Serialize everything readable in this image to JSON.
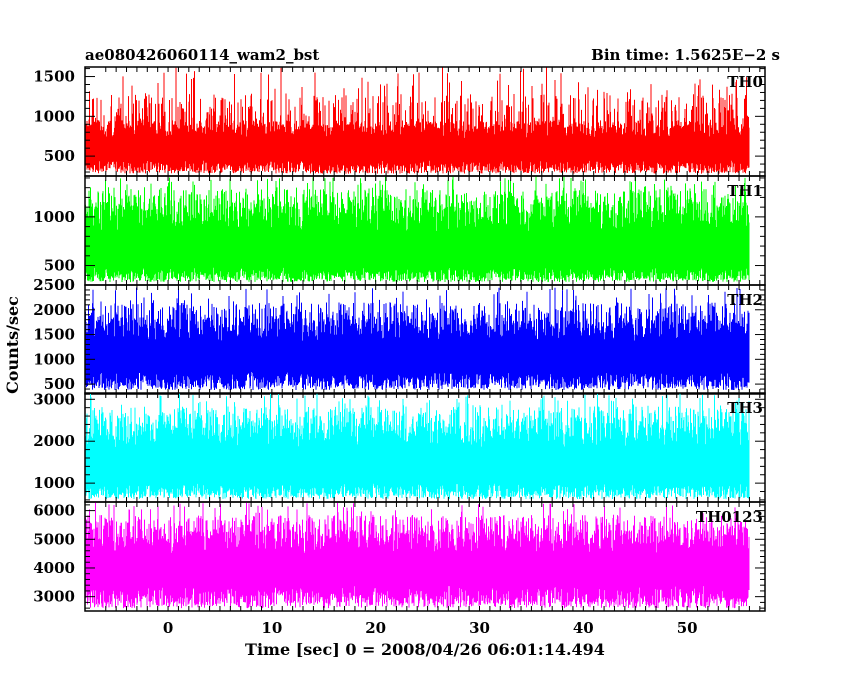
{
  "chart_data": {
    "type": "line",
    "title_left": "ae080426060114_wam2_bst",
    "title_right": "Bin time: 1.5625E−2 s",
    "xlabel": "Time [sec] 0 = 2008/04/26 06:01:14.494",
    "ylabel": "Counts/sec",
    "xlim": [
      -8,
      57.5
    ],
    "x_data_range": [
      -8,
      56
    ],
    "x_ticks": [
      0,
      10,
      20,
      30,
      40,
      50
    ],
    "x_tick_labels": [
      "0",
      "10",
      "20",
      "30",
      "40",
      "50"
    ],
    "panels": [
      {
        "name": "TH0",
        "color": "#ff0000",
        "ylim": [
          250,
          1620
        ],
        "y_ticks": [
          500,
          1000,
          1500
        ],
        "y_tick_labels": [
          "500",
          "1000",
          "1500"
        ],
        "series": {
          "min": 280,
          "typical_low": 450,
          "typical_high": 950,
          "max": 1620
        }
      },
      {
        "name": "TH1",
        "color": "#00ff00",
        "ylim": [
          300,
          1420
        ],
        "y_ticks": [
          500,
          1000
        ],
        "y_tick_labels": [
          "500",
          "1000"
        ],
        "series": {
          "min": 330,
          "typical_low": 480,
          "typical_high": 1150,
          "max": 1420
        }
      },
      {
        "name": "TH2",
        "color": "#0000ff",
        "ylim": [
          300,
          2500
        ],
        "y_ticks": [
          500,
          1000,
          1500,
          2000,
          2500
        ],
        "y_tick_labels": [
          "500",
          "1000",
          "1500",
          "2000",
          "2500"
        ],
        "series": {
          "min": 380,
          "typical_low": 750,
          "typical_high": 1850,
          "max": 2450
        }
      },
      {
        "name": "TH3",
        "color": "#00ffff",
        "ylim": [
          550,
          3150
        ],
        "y_ticks": [
          1000,
          2000,
          3000
        ],
        "y_tick_labels": [
          "1000",
          "2000",
          "3000"
        ],
        "series": {
          "min": 620,
          "typical_low": 1000,
          "typical_high": 2500,
          "max": 3150
        }
      },
      {
        "name": "TH0123",
        "color": "#ff00ff",
        "ylim": [
          2500,
          6300
        ],
        "y_ticks": [
          3000,
          4000,
          5000,
          6000
        ],
        "y_tick_labels": [
          "3000",
          "4000",
          "5000",
          "6000"
        ],
        "series": {
          "min": 2600,
          "typical_low": 3400,
          "typical_high": 5400,
          "max": 6300
        }
      }
    ],
    "grid": false,
    "legend": "none"
  }
}
